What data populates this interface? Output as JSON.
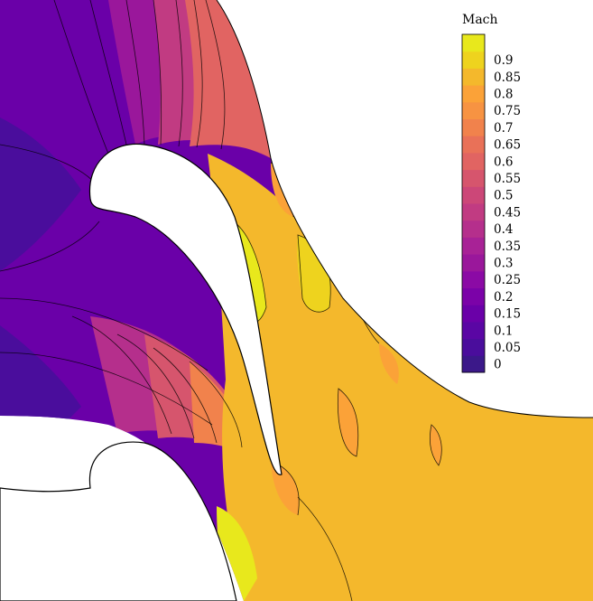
{
  "chart_data": {
    "type": "heatmap",
    "legend": {
      "title": "Mach",
      "position": "top-right",
      "levels": [
        0,
        0.05,
        0.1,
        0.15,
        0.2,
        0.25,
        0.3,
        0.35,
        0.4,
        0.45,
        0.5,
        0.55,
        0.6,
        0.65,
        0.7,
        0.75,
        0.8,
        0.85,
        0.9
      ],
      "labels": [
        "0.9",
        "0.85",
        "0.8",
        "0.75",
        "0.7",
        "0.65",
        "0.6",
        "0.55",
        "0.5",
        "0.45",
        "0.4",
        "0.35",
        "0.3",
        "0.25",
        "0.2",
        "0.15",
        "0.1",
        "0.05",
        "0"
      ],
      "colors": [
        "#3b1889",
        "#4a0d9c",
        "#5a06a4",
        "#6a00a8",
        "#7b02a8",
        "#8b0aa5",
        "#9a179b",
        "#a82296",
        "#b52f8c",
        "#c13b82",
        "#cc4778",
        "#d6556d",
        "#e16462",
        "#e97158",
        "#f1824c",
        "#f79342",
        "#fba238",
        "#f4b82c",
        "#eed31e",
        "#e8e81c"
      ]
    },
    "field": {
      "variable": "Mach",
      "range": [
        0,
        0.9
      ],
      "inlet_mach": 0.22,
      "outlet_mach": 0.85,
      "grid": false
    }
  }
}
